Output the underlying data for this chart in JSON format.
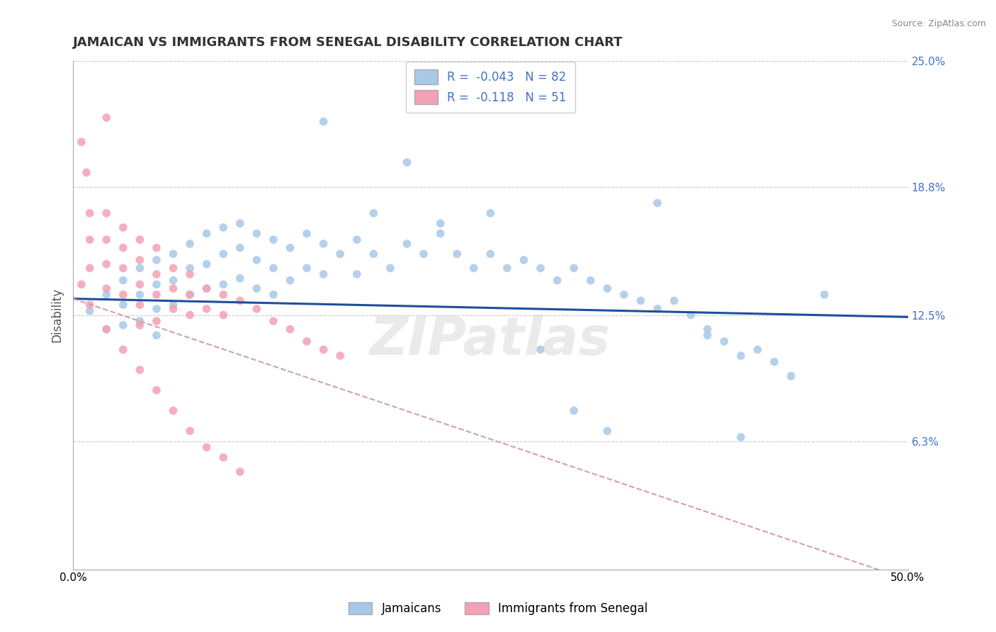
{
  "title": "JAMAICAN VS IMMIGRANTS FROM SENEGAL DISABILITY CORRELATION CHART",
  "source": "Source: ZipAtlas.com",
  "ylabel": "Disability",
  "xlim": [
    0.0,
    0.5
  ],
  "ylim": [
    0.0,
    0.25
  ],
  "xticks": [
    0.0,
    0.1,
    0.2,
    0.3,
    0.4,
    0.5
  ],
  "xticklabels": [
    "0.0%",
    "",
    "",
    "",
    "",
    "50.0%"
  ],
  "yticks_right": [
    0.0,
    0.063,
    0.125,
    0.188,
    0.25
  ],
  "ytick_labels_right": [
    "",
    "6.3%",
    "12.5%",
    "18.8%",
    "25.0%"
  ],
  "grid_color": "#cccccc",
  "background_color": "#ffffff",
  "blue_color": "#a8c8e8",
  "pink_color": "#f4a0b5",
  "blue_line_color": "#1f4e9c",
  "pink_line_color": "#d0a0b0",
  "label_color": "#4472c4",
  "r_blue": -0.043,
  "n_blue": 82,
  "r_pink": -0.118,
  "n_pink": 51,
  "legend_label_blue": "Jamaicans",
  "legend_label_pink": "Immigrants from Senegal",
  "watermark": "ZIPatlas",
  "blue_scatter_x": [
    0.01,
    0.02,
    0.02,
    0.03,
    0.03,
    0.03,
    0.04,
    0.04,
    0.04,
    0.05,
    0.05,
    0.05,
    0.05,
    0.06,
    0.06,
    0.06,
    0.07,
    0.07,
    0.07,
    0.08,
    0.08,
    0.08,
    0.09,
    0.09,
    0.09,
    0.1,
    0.1,
    0.1,
    0.11,
    0.11,
    0.11,
    0.12,
    0.12,
    0.12,
    0.13,
    0.13,
    0.14,
    0.14,
    0.15,
    0.15,
    0.16,
    0.17,
    0.17,
    0.18,
    0.19,
    0.2,
    0.21,
    0.22,
    0.23,
    0.24,
    0.25,
    0.26,
    0.27,
    0.28,
    0.29,
    0.3,
    0.31,
    0.32,
    0.33,
    0.34,
    0.35,
    0.36,
    0.37,
    0.38,
    0.39,
    0.4,
    0.41,
    0.42,
    0.43,
    0.25,
    0.3,
    0.2,
    0.45,
    0.35,
    0.38,
    0.15,
    0.18,
    0.22,
    0.28,
    0.32,
    0.4
  ],
  "blue_scatter_y": [
    0.127,
    0.135,
    0.118,
    0.142,
    0.13,
    0.12,
    0.148,
    0.135,
    0.122,
    0.152,
    0.14,
    0.128,
    0.115,
    0.155,
    0.142,
    0.13,
    0.16,
    0.148,
    0.135,
    0.165,
    0.15,
    0.138,
    0.168,
    0.155,
    0.14,
    0.17,
    0.158,
    0.143,
    0.165,
    0.152,
    0.138,
    0.162,
    0.148,
    0.135,
    0.158,
    0.142,
    0.165,
    0.148,
    0.16,
    0.145,
    0.155,
    0.162,
    0.145,
    0.155,
    0.148,
    0.16,
    0.155,
    0.165,
    0.155,
    0.148,
    0.155,
    0.148,
    0.152,
    0.148,
    0.142,
    0.148,
    0.142,
    0.138,
    0.135,
    0.132,
    0.128,
    0.132,
    0.125,
    0.118,
    0.112,
    0.105,
    0.108,
    0.102,
    0.095,
    0.175,
    0.078,
    0.2,
    0.135,
    0.18,
    0.115,
    0.22,
    0.175,
    0.17,
    0.108,
    0.068,
    0.065
  ],
  "pink_scatter_x": [
    0.005,
    0.008,
    0.01,
    0.01,
    0.01,
    0.02,
    0.02,
    0.02,
    0.02,
    0.03,
    0.03,
    0.03,
    0.03,
    0.04,
    0.04,
    0.04,
    0.04,
    0.04,
    0.05,
    0.05,
    0.05,
    0.05,
    0.06,
    0.06,
    0.06,
    0.07,
    0.07,
    0.07,
    0.08,
    0.08,
    0.09,
    0.09,
    0.1,
    0.11,
    0.12,
    0.13,
    0.14,
    0.15,
    0.16,
    0.005,
    0.01,
    0.02,
    0.03,
    0.04,
    0.05,
    0.06,
    0.07,
    0.08,
    0.09,
    0.1,
    0.02
  ],
  "pink_scatter_y": [
    0.21,
    0.195,
    0.175,
    0.162,
    0.148,
    0.175,
    0.162,
    0.15,
    0.138,
    0.168,
    0.158,
    0.148,
    0.135,
    0.162,
    0.152,
    0.14,
    0.13,
    0.12,
    0.158,
    0.145,
    0.135,
    0.122,
    0.148,
    0.138,
    0.128,
    0.145,
    0.135,
    0.125,
    0.138,
    0.128,
    0.135,
    0.125,
    0.132,
    0.128,
    0.122,
    0.118,
    0.112,
    0.108,
    0.105,
    0.14,
    0.13,
    0.118,
    0.108,
    0.098,
    0.088,
    0.078,
    0.068,
    0.06,
    0.055,
    0.048,
    0.222
  ],
  "blue_trend_x0": 0.0,
  "blue_trend_x1": 0.5,
  "blue_trend_y0": 0.133,
  "blue_trend_y1": 0.124,
  "pink_trend_x0": 0.0,
  "pink_trend_x1": 0.5,
  "pink_trend_y0": 0.133,
  "pink_trend_y1": -0.005
}
